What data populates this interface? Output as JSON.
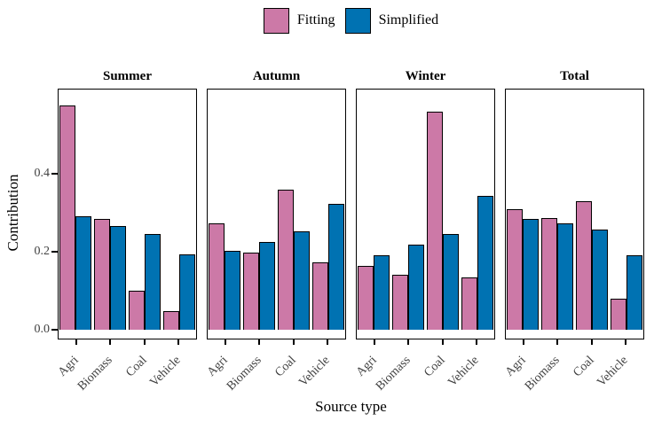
{
  "legend": {
    "items": [
      {
        "label": "Fitting",
        "color": "#CC79A7"
      },
      {
        "label": "Simplified",
        "color": "#0072B2"
      }
    ]
  },
  "axes": {
    "x_title": "Source type",
    "y_title": "Contribution"
  },
  "chart_data": {
    "type": "bar",
    "title": "",
    "xlabel": "Source type",
    "ylabel": "Contribution",
    "categories": [
      "Agri",
      "Biomass",
      "Coal",
      "Vehicle"
    ],
    "series_names": [
      "Fitting",
      "Simplified"
    ],
    "series_colors": [
      "#CC79A7",
      "#0072B2"
    ],
    "facets": [
      {
        "title": "Summer",
        "series": [
          {
            "name": "Fitting",
            "values": [
              0.575,
              0.285,
              0.1,
              0.048
            ]
          },
          {
            "name": "Simplified",
            "values": [
              0.29,
              0.267,
              0.246,
              0.193
            ]
          }
        ]
      },
      {
        "title": "Autumn",
        "series": [
          {
            "name": "Fitting",
            "values": [
              0.272,
              0.198,
              0.358,
              0.173
            ]
          },
          {
            "name": "Simplified",
            "values": [
              0.203,
              0.225,
              0.252,
              0.322
            ]
          }
        ]
      },
      {
        "title": "Winter",
        "series": [
          {
            "name": "Fitting",
            "values": [
              0.164,
              0.141,
              0.56,
              0.134
            ]
          },
          {
            "name": "Simplified",
            "values": [
              0.191,
              0.219,
              0.245,
              0.343
            ]
          }
        ]
      },
      {
        "title": "Total",
        "series": [
          {
            "name": "Fitting",
            "values": [
              0.308,
              0.286,
              0.329,
              0.08
            ]
          },
          {
            "name": "Simplified",
            "values": [
              0.284,
              0.272,
              0.257,
              0.19
            ]
          }
        ]
      }
    ],
    "y_ticks": [
      {
        "label": "0.0",
        "value": 0.0
      },
      {
        "label": "0.2",
        "value": 0.2
      },
      {
        "label": "0.4",
        "value": 0.4
      }
    ],
    "ylim": [
      -0.025,
      0.615
    ],
    "grid": false,
    "legend_position": "top",
    "bar_border_color": "#000000",
    "panel_border_color": "#000000"
  }
}
